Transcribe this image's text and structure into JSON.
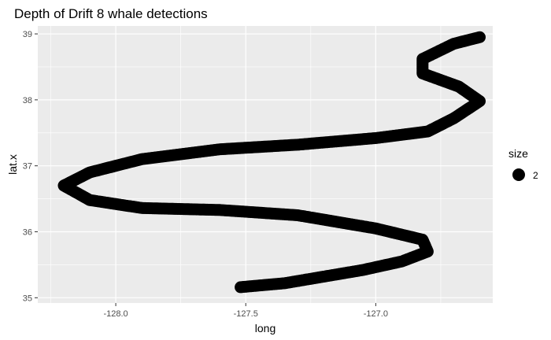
{
  "chart_data": {
    "type": "scatter",
    "title": "Depth of Drift 8 whale detections",
    "xlabel": "long",
    "ylabel": "lat.x",
    "xlim": [
      -128.3,
      -126.55
    ],
    "ylim": [
      34.92,
      39.12
    ],
    "x_ticks": [
      -128.0,
      -127.5,
      -127.0
    ],
    "x_tick_labels": [
      "-128.0",
      "-127.5",
      "-127.0"
    ],
    "y_ticks": [
      35,
      36,
      37,
      38,
      39
    ],
    "y_tick_labels": [
      "35",
      "36",
      "37",
      "38",
      "39"
    ],
    "grid": true,
    "colors": {
      "panel": "#ebebeb",
      "grid": "#ffffff",
      "point": "#000000"
    },
    "legend": {
      "title": "size",
      "labels": [
        "2"
      ],
      "placement": "right"
    },
    "track_vertices": [
      [
        -127.52,
        35.16
      ],
      [
        -127.35,
        35.22
      ],
      [
        -127.2,
        35.32
      ],
      [
        -127.05,
        35.42
      ],
      [
        -126.9,
        35.55
      ],
      [
        -126.8,
        35.7
      ],
      [
        -126.82,
        35.88
      ],
      [
        -127.0,
        36.05
      ],
      [
        -127.3,
        36.25
      ],
      [
        -127.6,
        36.33
      ],
      [
        -127.9,
        36.36
      ],
      [
        -128.1,
        36.48
      ],
      [
        -128.2,
        36.7
      ],
      [
        -128.1,
        36.9
      ],
      [
        -127.9,
        37.1
      ],
      [
        -127.6,
        37.25
      ],
      [
        -127.3,
        37.32
      ],
      [
        -127.0,
        37.42
      ],
      [
        -126.8,
        37.52
      ],
      [
        -126.7,
        37.72
      ],
      [
        -126.6,
        37.98
      ],
      [
        -126.68,
        38.2
      ],
      [
        -126.82,
        38.4
      ],
      [
        -126.82,
        38.62
      ],
      [
        -126.7,
        38.85
      ],
      [
        -126.6,
        38.95
      ]
    ]
  }
}
